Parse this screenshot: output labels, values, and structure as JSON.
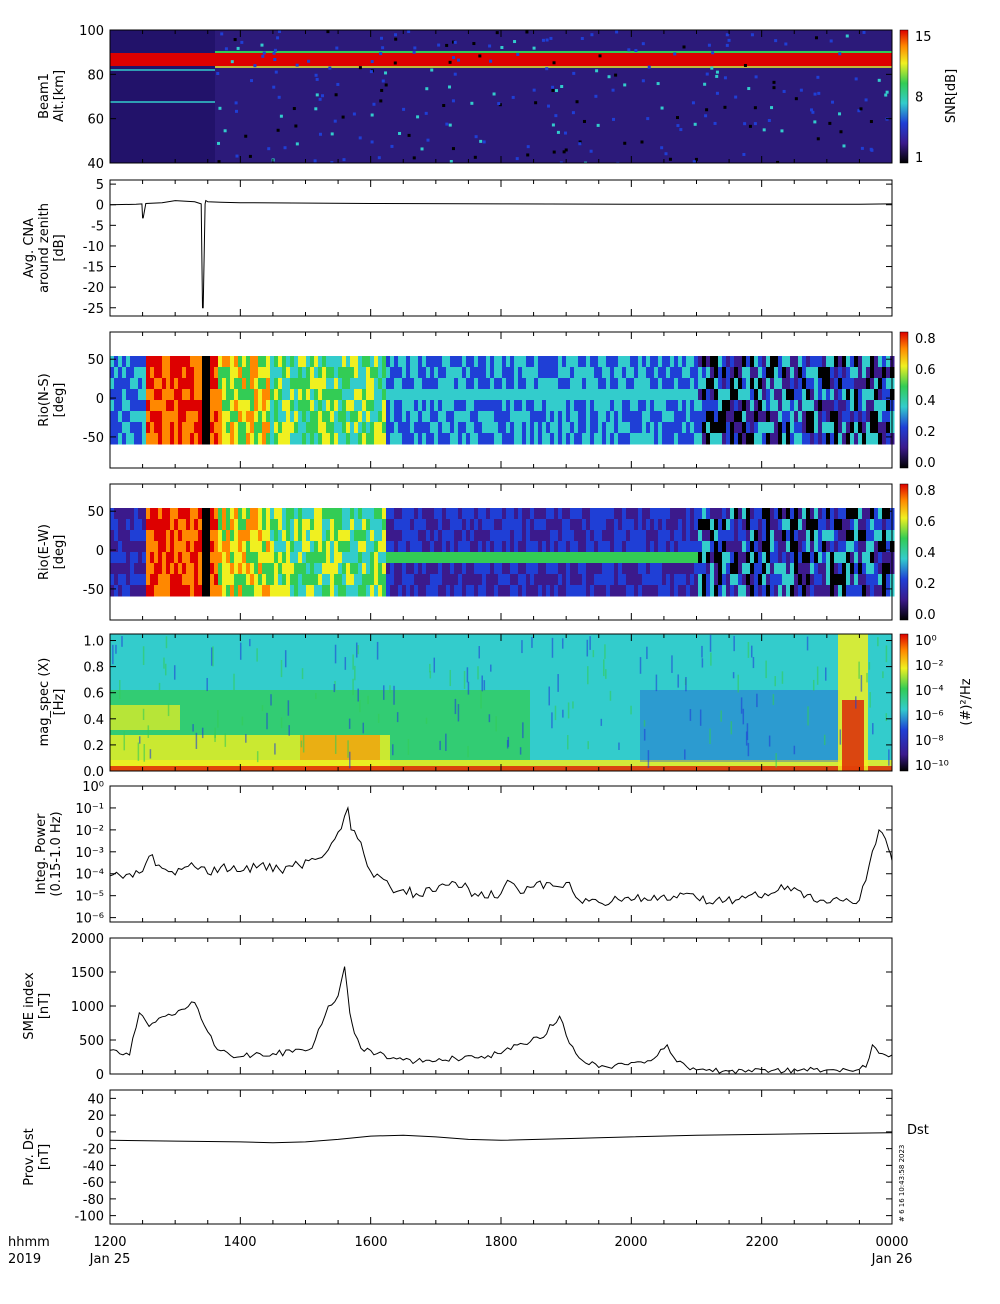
{
  "time_axis": {
    "ticks": [
      "1200",
      "1400",
      "1600",
      "1800",
      "2000",
      "2200",
      "0000"
    ],
    "minor_per_major": 4,
    "left_label_1": "hhmm",
    "left_label_2": "2019",
    "start_date": "Jan 25",
    "end_date": "Jan 26"
  },
  "side_texts": {
    "dst_label": "Dst",
    "stamp": "# 6 16 10:43:58 2023"
  },
  "colors": {
    "panel_bg_dark": "#2c1a7a",
    "red": "#dd0000",
    "green": "#33cc55",
    "cyan": "#33cccc",
    "blue": "#1f3fd6",
    "line": "#000000"
  },
  "chart_data": [
    {
      "type": "heatmap",
      "name": "beam1",
      "ylabel": [
        "Beam1",
        "Alt.[km]"
      ],
      "yticks": [
        "100",
        "80",
        "60",
        "40"
      ],
      "ylim": [
        40,
        100
      ],
      "colorbar": {
        "label": "SNR[dB]",
        "ticks": [
          "15",
          "8",
          "1"
        ],
        "range": [
          1,
          15
        ]
      },
      "description_values": {
        "echo_layer_km": 88
      }
    },
    {
      "type": "line",
      "name": "cna",
      "ylabel": [
        "Avg. CNA",
        "around zenith",
        "[dB]"
      ],
      "yticks": [
        "5",
        "0",
        "-5",
        "-10",
        "-15",
        "-20",
        "-25"
      ],
      "ylim": [
        -27,
        6
      ],
      "x_hours": [
        12.0,
        12.4,
        12.49,
        12.5,
        12.51,
        12.55,
        12.8,
        13.0,
        13.3,
        13.4,
        13.42,
        13.43,
        13.46,
        13.47,
        13.5,
        13.7,
        14.0,
        16.0,
        18.0,
        20.0,
        22.0,
        23.5,
        24.0
      ],
      "y": [
        0.0,
        0.1,
        0.2,
        -3.2,
        -3.2,
        0.3,
        0.5,
        1.0,
        0.7,
        0.2,
        -25.0,
        -25.0,
        0.2,
        1.0,
        0.7,
        0.6,
        0.5,
        0.3,
        0.2,
        0.1,
        0.1,
        0.1,
        0.2
      ]
    },
    {
      "type": "heatmap",
      "name": "riometer-ns",
      "ylabel": [
        "Rio(N-S)",
        "[deg]"
      ],
      "yticks": [
        "50",
        "0",
        "-50"
      ],
      "ylim": [
        -90,
        85
      ],
      "colorbar": {
        "label": "",
        "ticks": [
          "0.8",
          "0.6",
          "0.4",
          "0.2",
          "0.0"
        ],
        "range": [
          0,
          0.85
        ]
      }
    },
    {
      "type": "heatmap",
      "name": "riometer-ew",
      "ylabel": [
        "Rio(E-W)",
        "[deg]"
      ],
      "yticks": [
        "50",
        "0",
        "-50"
      ],
      "ylim": [
        -90,
        85
      ],
      "colorbar": {
        "label": "",
        "ticks": [
          "0.8",
          "0.6",
          "0.4",
          "0.2",
          "0.0"
        ],
        "range": [
          0,
          0.85
        ]
      }
    },
    {
      "type": "heatmap",
      "name": "mag-spec",
      "ylabel": [
        "mag_spec (X)",
        "[Hz]"
      ],
      "yticks": [
        "1.0",
        "0.8",
        "0.6",
        "0.4",
        "0.2",
        "0.0"
      ],
      "ylim": [
        0,
        1.05
      ],
      "colorbar": {
        "label": "(#)²/Hz",
        "ticks": [
          "10⁰",
          "10⁻²",
          "10⁻⁴",
          "10⁻⁶",
          "10⁻⁸",
          "10⁻¹⁰"
        ],
        "range": [
          -10,
          0.5
        ]
      }
    },
    {
      "type": "line",
      "name": "integ-power",
      "ylabel": [
        "Integ. Power",
        "(0.15-1.0 Hz)"
      ],
      "yticks": [
        "10⁰",
        "10⁻¹",
        "10⁻²",
        "10⁻³",
        "10⁻⁴",
        "10⁻⁵",
        "10⁻⁶"
      ],
      "ylim_log10": [
        -6.2,
        0
      ],
      "x_hours": [
        12.0,
        12.3,
        12.5,
        12.6,
        12.75,
        12.95,
        13.1,
        13.25,
        13.5,
        13.7,
        14.0,
        14.3,
        14.6,
        14.9,
        15.2,
        15.4,
        15.5,
        15.65,
        15.7,
        15.8,
        16.0,
        16.3,
        16.7,
        17.0,
        17.3,
        17.6,
        18.0,
        18.1,
        18.3,
        18.5,
        18.7,
        18.9,
        19.0,
        19.2,
        19.5,
        19.9,
        20.3,
        20.7,
        21.0,
        21.3,
        21.6,
        21.8,
        22.0,
        22.3,
        22.6,
        22.9,
        23.2,
        23.5,
        23.65,
        23.8,
        23.95,
        24.0
      ],
      "y_log10": [
        -4.1,
        -4.0,
        -3.9,
        -3.2,
        -3.6,
        -3.9,
        -3.8,
        -3.5,
        -4.0,
        -3.7,
        -3.9,
        -3.6,
        -3.8,
        -3.6,
        -3.3,
        -2.6,
        -2.1,
        -1.0,
        -2.0,
        -2.4,
        -3.9,
        -4.6,
        -4.9,
        -4.8,
        -4.4,
        -4.9,
        -4.9,
        -4.3,
        -4.9,
        -4.6,
        -4.4,
        -4.6,
        -4.4,
        -5.2,
        -5.3,
        -5.1,
        -5.2,
        -5.1,
        -5.1,
        -5.2,
        -5.2,
        -5.0,
        -5.1,
        -4.5,
        -4.8,
        -5.2,
        -5.2,
        -5.2,
        -3.6,
        -2.0,
        -2.9,
        -3.4
      ]
    },
    {
      "type": "line",
      "name": "sme-index",
      "ylabel": [
        "SME index",
        "[nT]"
      ],
      "yticks": [
        "2000",
        "1500",
        "1000",
        "500",
        "0"
      ],
      "ylim": [
        0,
        2000
      ],
      "x_hours": [
        12.0,
        12.3,
        12.45,
        12.6,
        12.85,
        13.1,
        13.3,
        13.5,
        13.6,
        13.9,
        14.2,
        14.5,
        14.8,
        15.1,
        15.35,
        15.5,
        15.6,
        15.68,
        15.75,
        15.85,
        16.1,
        16.4,
        16.7,
        17.0,
        17.3,
        17.7,
        18.0,
        18.3,
        18.6,
        18.9,
        19.05,
        19.3,
        19.6,
        19.9,
        20.2,
        20.4,
        20.55,
        20.7,
        21.0,
        21.4,
        21.8,
        22.2,
        22.6,
        23.0,
        23.4,
        23.6,
        23.7,
        23.85,
        24.0
      ],
      "y": [
        350,
        280,
        900,
        700,
        850,
        950,
        1050,
        620,
        420,
        240,
        280,
        300,
        320,
        380,
        1000,
        1150,
        1580,
        900,
        600,
        380,
        300,
        220,
        190,
        190,
        230,
        260,
        300,
        450,
        520,
        850,
        450,
        160,
        110,
        140,
        160,
        270,
        430,
        180,
        60,
        40,
        60,
        60,
        60,
        60,
        40,
        100,
        430,
        300,
        280
      ]
    },
    {
      "type": "line",
      "name": "prov-dst",
      "ylabel": [
        "Prov. Dst",
        "[nT]"
      ],
      "yticks": [
        "40",
        "20",
        "0",
        "-20",
        "-40",
        "-60",
        "-80",
        "-100"
      ],
      "ylim": [
        -110,
        50
      ],
      "x_hours": [
        12.0,
        13.0,
        14.0,
        14.5,
        15.0,
        15.5,
        16.0,
        16.5,
        17.0,
        17.5,
        18.0,
        19.0,
        20.0,
        21.0,
        22.0,
        23.0,
        24.0
      ],
      "y": [
        -10,
        -11,
        -12,
        -13,
        -12,
        -9,
        -5,
        -4,
        -6,
        -9,
        -10,
        -8,
        -6,
        -4,
        -3,
        -2,
        -1
      ]
    }
  ]
}
